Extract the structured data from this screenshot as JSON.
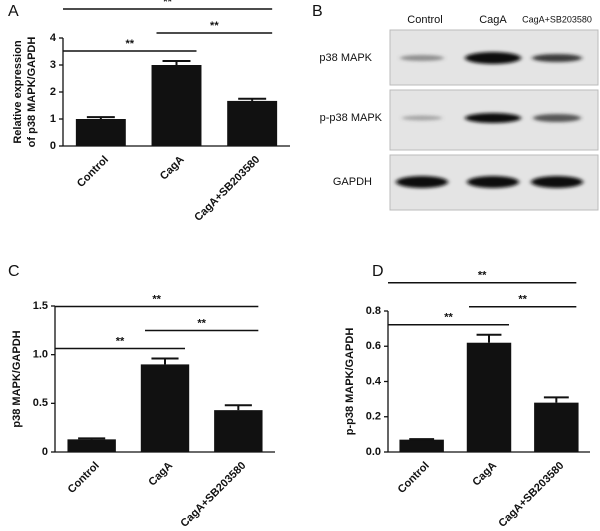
{
  "chart_data": [
    {
      "type": "bar",
      "panel": "A",
      "ylabel": [
        "Relative expression",
        "of p38 MAPK/GAPDH"
      ],
      "categories": [
        "Control",
        "CagA",
        "CagA+SB203580"
      ],
      "values": [
        1.0,
        3.0,
        1.67
      ],
      "errors": [
        0.07,
        0.15,
        0.08
      ],
      "color": "#111111",
      "ylim": [
        0,
        4
      ],
      "yticks": [
        0,
        1,
        2,
        3,
        4
      ],
      "brackets": [
        {
          "label": "**",
          "span": [
            "Control",
            "CagA"
          ]
        },
        {
          "label": "**",
          "span": [
            "CagA",
            "CagA+SB203580"
          ]
        },
        {
          "label": "**",
          "span": [
            "Control",
            "CagA+SB203580"
          ]
        }
      ]
    },
    {
      "type": "bar",
      "panel": "C",
      "ylabel": [
        "p38 MAPK/GAPDH"
      ],
      "categories": [
        "Control",
        "CagA",
        "CagA+SB203580"
      ],
      "values": [
        0.13,
        0.9,
        0.43
      ],
      "errors": [
        0.01,
        0.06,
        0.05
      ],
      "color": "#111111",
      "ylim": [
        0,
        1.5
      ],
      "yticks": [
        0,
        0.5,
        {
          "value": 1,
          "label": "1.0"
        },
        1.5
      ],
      "brackets": [
        {
          "label": "**",
          "span": [
            "Control",
            "CagA"
          ]
        },
        {
          "label": "**",
          "span": [
            "CagA",
            "CagA+SB203580"
          ]
        },
        {
          "label": "**",
          "span": [
            "Control",
            "CagA+SB203580"
          ]
        }
      ]
    },
    {
      "type": "bar",
      "panel": "D",
      "ylabel": [
        "p-p38 MAPK/GAPDH"
      ],
      "categories": [
        "Control",
        "CagA",
        "CagA+SB203580"
      ],
      "values": [
        0.07,
        0.62,
        0.28
      ],
      "errors": [
        0.003,
        0.045,
        0.03
      ],
      "color": "#111111",
      "ylim": [
        0,
        0.8
      ],
      "yticks": [
        {
          "value": 0,
          "label": "0.0"
        },
        0.2,
        0.4,
        0.6,
        0.8
      ],
      "brackets": [
        {
          "label": "**",
          "span": [
            "Control",
            "CagA"
          ]
        },
        {
          "label": "**",
          "span": [
            "CagA",
            "CagA+SB203580"
          ]
        },
        {
          "label": "**",
          "span": [
            "Control",
            "CagA+SB203580"
          ]
        }
      ]
    }
  ],
  "blot": {
    "panel": "B",
    "columns": [
      "Control",
      "CagA",
      "CagA+SB203580"
    ],
    "rows": [
      "p38 MAPK",
      "p-p38 MAPK",
      "GAPDH"
    ]
  }
}
